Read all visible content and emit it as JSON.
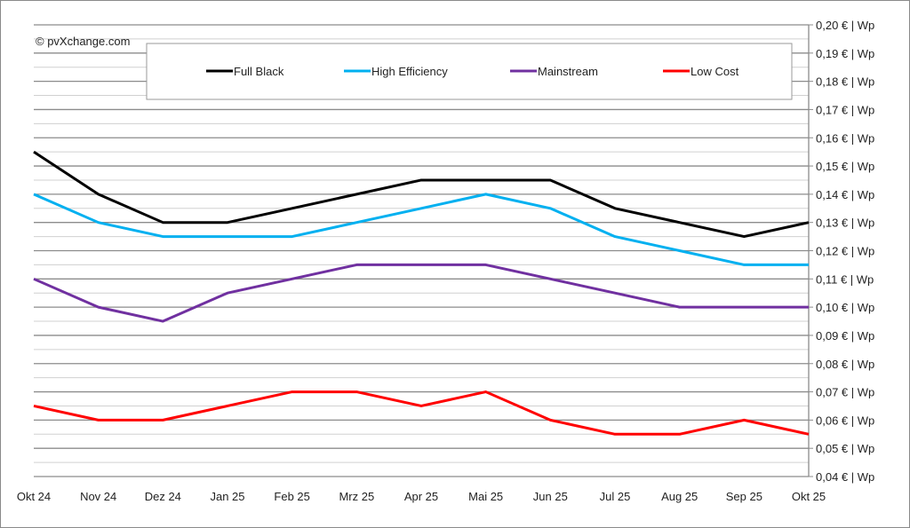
{
  "chart_data": {
    "type": "line",
    "watermark": "© pvXchange.com",
    "categories": [
      "Okt 24",
      "Nov 24",
      "Dez 24",
      "Jan 25",
      "Feb 25",
      "Mrz 25",
      "Apr 25",
      "Mai 25",
      "Jun 25",
      "Jul 25",
      "Aug 25",
      "Sep 25",
      "Okt 25"
    ],
    "ylim": [
      0.04,
      0.2
    ],
    "y_ticks": [
      "0,04 € | Wp",
      "0,05 € | Wp",
      "0,06 € | Wp",
      "0,07 € | Wp",
      "0,08 € | Wp",
      "0,09 € | Wp",
      "0,10 € | Wp",
      "0,11 € | Wp",
      "0,12 € | Wp",
      "0,13 € | Wp",
      "0,14 € | Wp",
      "0,15 € | Wp",
      "0,16 € | Wp",
      "0,17 € | Wp",
      "0,18 € | Wp",
      "0,19 € | Wp",
      "0,20 € | Wp"
    ],
    "y_axis_position": "right",
    "grid": true,
    "legend_position": "top",
    "series": [
      {
        "name": "Full Black",
        "color": "#000000",
        "values": [
          0.155,
          0.14,
          0.13,
          0.13,
          0.135,
          0.14,
          0.145,
          0.145,
          0.145,
          0.135,
          0.13,
          0.125,
          0.13
        ]
      },
      {
        "name": "High Efficiency",
        "color": "#00b0f0",
        "values": [
          0.14,
          0.13,
          0.125,
          0.125,
          0.125,
          0.13,
          0.135,
          0.14,
          0.135,
          0.125,
          0.12,
          0.115,
          0.115
        ]
      },
      {
        "name": "Mainstream",
        "color": "#7030a0",
        "values": [
          0.11,
          0.1,
          0.095,
          0.105,
          0.11,
          0.115,
          0.115,
          0.115,
          0.11,
          0.105,
          0.1,
          0.1,
          0.1
        ]
      },
      {
        "name": "Low Cost",
        "color": "#ff0000",
        "values": [
          0.065,
          0.06,
          0.06,
          0.065,
          0.07,
          0.07,
          0.065,
          0.07,
          0.06,
          0.055,
          0.055,
          0.06,
          0.055
        ]
      }
    ]
  }
}
